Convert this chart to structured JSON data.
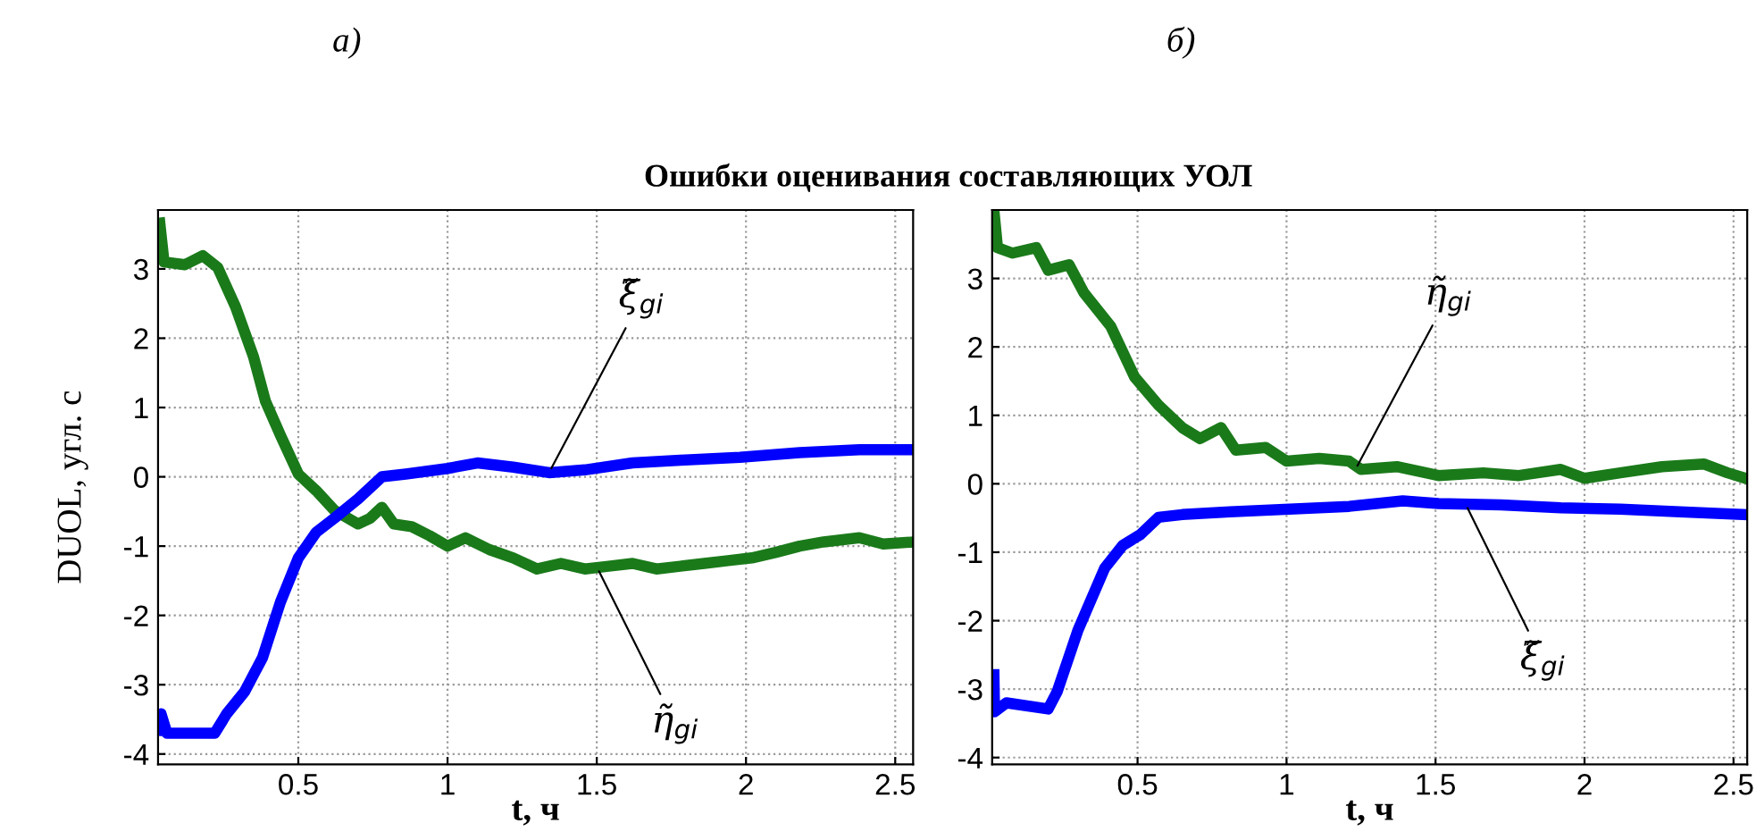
{
  "chart_data": [
    {
      "type": "line",
      "title": "а)",
      "subtitle": "Ошибки оценивания составляющих УОЛ",
      "xlabel": "t, ч",
      "ylabel": "DUOL, угл. с",
      "xlim": [
        0.03,
        2.56
      ],
      "ylim": [
        -4.15,
        3.85
      ],
      "xticks": [
        0.5,
        1,
        1.5,
        2,
        2.5
      ],
      "yticks": [
        -4,
        -3,
        -2,
        -1,
        0,
        1,
        2,
        3
      ],
      "grid": true,
      "line_style": "solid",
      "series": [
        {
          "color": "#1a7a1a",
          "x": [
            0.036,
            0.05,
            0.12,
            0.18,
            0.23,
            0.29,
            0.35,
            0.39,
            0.44,
            0.5,
            0.56,
            0.62,
            0.7,
            0.74,
            0.78,
            0.82,
            0.88,
            0.94,
            1.0,
            1.06,
            1.14,
            1.22,
            1.3,
            1.38,
            1.46,
            1.54,
            1.62,
            1.7,
            1.78,
            1.86,
            1.94,
            2.02,
            2.1,
            2.18,
            2.26,
            2.38,
            2.46,
            2.56
          ],
          "values": [
            3.66,
            3.1,
            3.06,
            3.19,
            3.02,
            2.45,
            1.73,
            1.09,
            0.6,
            0.04,
            -0.2,
            -0.48,
            -0.68,
            -0.6,
            -0.44,
            -0.68,
            -0.72,
            -0.85,
            -1.0,
            -0.88,
            -1.05,
            -1.17,
            -1.33,
            -1.25,
            -1.33,
            -1.29,
            -1.25,
            -1.33,
            -1.29,
            -1.25,
            -1.21,
            -1.17,
            -1.09,
            -1.0,
            -0.94,
            -0.88,
            -0.97,
            -0.94
          ]
        },
        {
          "color": "#0000ff",
          "x": [
            0.036,
            0.04,
            0.06,
            0.14,
            0.22,
            0.26,
            0.32,
            0.38,
            0.44,
            0.5,
            0.56,
            0.62,
            0.7,
            0.78,
            0.86,
            1.0,
            1.1,
            1.22,
            1.34,
            1.46,
            1.62,
            1.78,
            1.98,
            2.18,
            2.38,
            2.56
          ],
          "values": [
            -3.66,
            -3.42,
            -3.7,
            -3.7,
            -3.7,
            -3.42,
            -3.1,
            -2.61,
            -1.81,
            -1.17,
            -0.8,
            -0.6,
            -0.32,
            0.0,
            0.04,
            0.12,
            0.2,
            0.14,
            0.06,
            0.1,
            0.2,
            0.24,
            0.28,
            0.35,
            0.39,
            0.39
          ]
        }
      ],
      "annotations": [
        {
          "text": "ξ̃$_{gi}$",
          "x": 1.34,
          "y": 0.06
        },
        {
          "text": "η̃$_{gi}$",
          "x": 1.5,
          "y": -1.3
        }
      ]
    },
    {
      "type": "line",
      "title": "б)",
      "xlabel": "t, ч",
      "xlim": [
        0.012,
        2.546
      ],
      "ylim": [
        -4.1,
        4.0
      ],
      "xticks": [
        0.5,
        1,
        1.5,
        2,
        2.5
      ],
      "yticks": [
        -4,
        -3,
        -2,
        -1,
        0,
        1,
        2,
        3
      ],
      "grid": true,
      "line_style": "solid",
      "series": [
        {
          "color": "#1a7a1a",
          "x": [
            0.018,
            0.03,
            0.08,
            0.16,
            0.2,
            0.27,
            0.32,
            0.41,
            0.49,
            0.57,
            0.65,
            0.71,
            0.78,
            0.83,
            0.93,
            1.0,
            1.11,
            1.21,
            1.25,
            1.37,
            1.51,
            1.66,
            1.78,
            1.92,
            2.0,
            2.12,
            2.26,
            2.4,
            2.48,
            2.54
          ],
          "values": [
            3.99,
            3.45,
            3.37,
            3.45,
            3.12,
            3.2,
            2.79,
            2.3,
            1.56,
            1.15,
            0.82,
            0.66,
            0.82,
            0.49,
            0.53,
            0.33,
            0.37,
            0.33,
            0.21,
            0.25,
            0.12,
            0.16,
            0.12,
            0.21,
            0.08,
            0.16,
            0.25,
            0.29,
            0.16,
            0.08
          ]
        },
        {
          "color": "#0000ff",
          "x": [
            0.018,
            0.02,
            0.06,
            0.2,
            0.23,
            0.3,
            0.39,
            0.45,
            0.51,
            0.57,
            0.65,
            0.81,
            1.01,
            1.21,
            1.39,
            1.51,
            1.72,
            1.92,
            2.12,
            2.32,
            2.53
          ],
          "values": [
            -2.79,
            -3.33,
            -3.2,
            -3.29,
            -3.04,
            -2.14,
            -1.23,
            -0.9,
            -0.74,
            -0.49,
            -0.45,
            -0.41,
            -0.37,
            -0.33,
            -0.25,
            -0.29,
            -0.31,
            -0.35,
            -0.37,
            -0.41,
            -0.45
          ]
        }
      ],
      "annotations": [
        {
          "text": "η̃$_{gi}$",
          "x": 1.23,
          "y": 0.2
        },
        {
          "text": "ξ̃$_{gi}$",
          "x": 1.6,
          "y": -0.29
        }
      ]
    }
  ]
}
